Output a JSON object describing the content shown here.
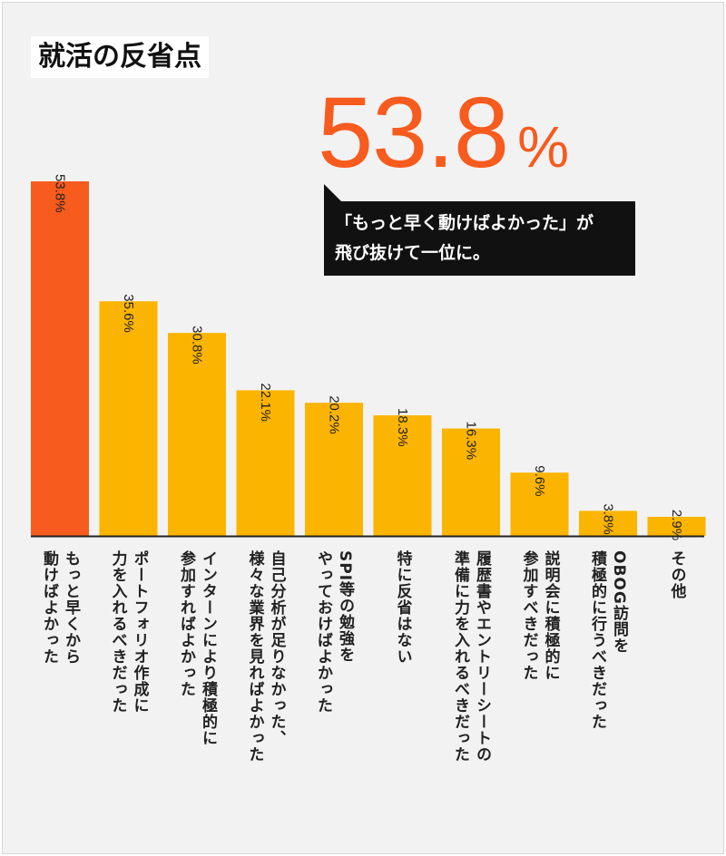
{
  "title": "就活の反省点",
  "highlight": {
    "value": "53.8",
    "unit": "%",
    "caption_line1": "「もっと早く動けばよかった」が",
    "caption_line2": "飛び抜けて一位に。"
  },
  "colors": {
    "highlight": "#f75b1e",
    "bar": "#fbb400",
    "background": "#f2f2f2",
    "callout_bg": "#111111"
  },
  "chart_data": {
    "type": "bar",
    "title": "就活の反省点",
    "categories": [
      [
        "もっと早くから",
        "動けばよかった"
      ],
      [
        "ポートフォリオ作成に",
        "力を入れるべきだった"
      ],
      [
        "インターンにより積極的に",
        "参加すればよかった"
      ],
      [
        "自己分析が足りなかった、",
        "様々な業界を見ればよかった"
      ],
      [
        "SPI等の勉強を",
        "やっておけばよかった"
      ],
      [
        "特に反省はない"
      ],
      [
        "履歴書やエントリーシートの",
        "準備に力を入れるべきだった"
      ],
      [
        "説明会に積極的に",
        "参加すべきだった"
      ],
      [
        "OBOG訪問を",
        "積極的に行うべきだった"
      ],
      [
        "その他"
      ]
    ],
    "values": [
      53.8,
      35.6,
      30.8,
      22.1,
      20.2,
      18.3,
      16.3,
      9.6,
      3.8,
      2.9
    ],
    "value_labels": [
      "53.8%",
      "35.6%",
      "30.8%",
      "22.1%",
      "20.2%",
      "18.3%",
      "16.3%",
      "9.6%",
      "3.8%",
      "2.9%"
    ],
    "highlight_index": 0,
    "ylim": [
      0,
      53.8
    ],
    "grid": false,
    "legend": "none"
  }
}
